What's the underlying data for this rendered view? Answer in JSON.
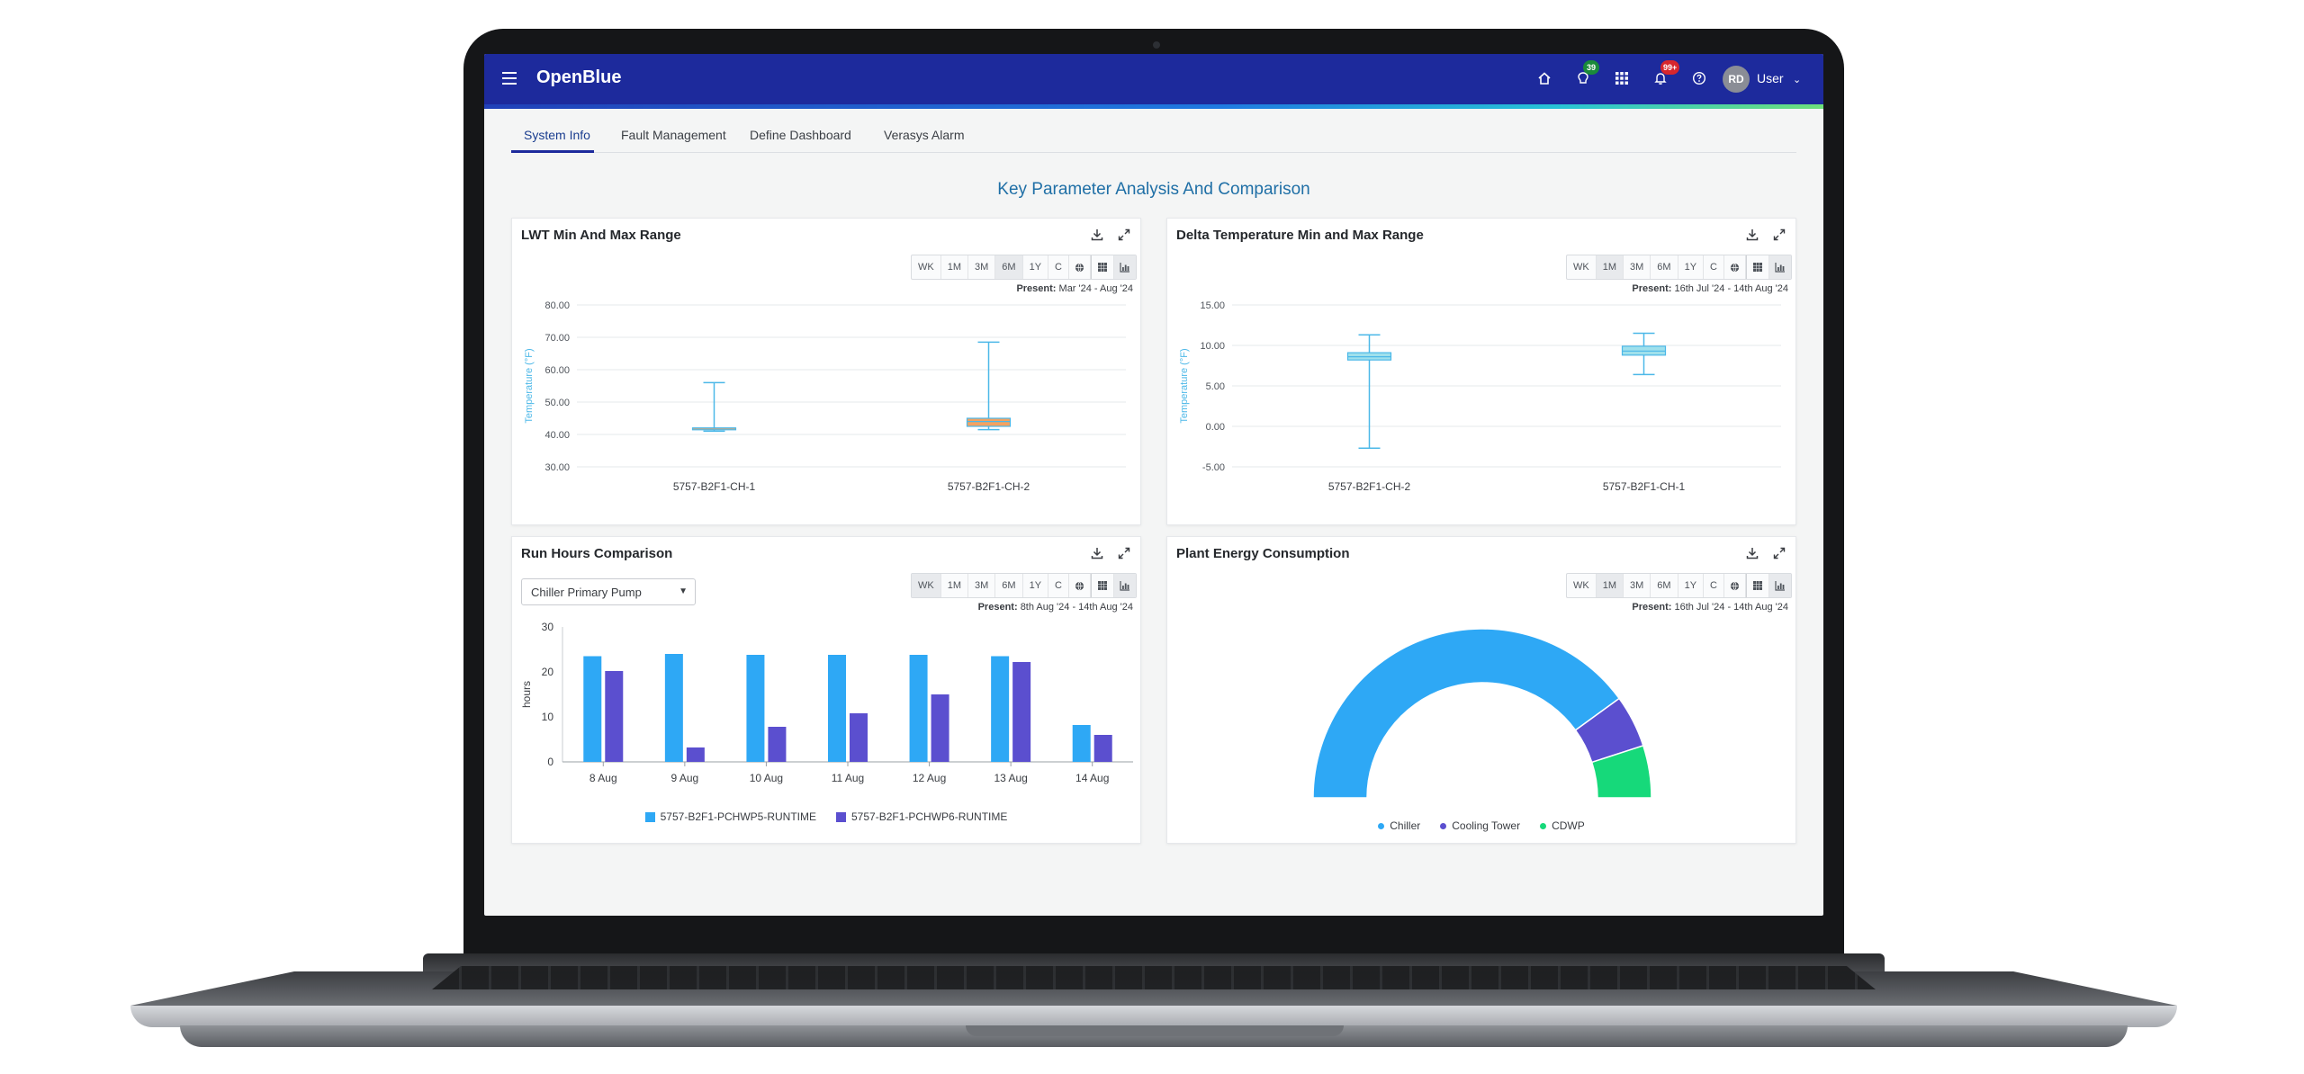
{
  "app": {
    "title": "OpenBlue"
  },
  "header": {
    "messages_badge": "39",
    "notifications_badge": "99+",
    "avatar_initials": "RD",
    "user_label": "User"
  },
  "tabs": [
    {
      "label": "System Info",
      "active": true
    },
    {
      "label": "Fault Management",
      "active": false
    },
    {
      "label": "Define Dashboard",
      "active": false
    },
    {
      "label": "Verasys Alarm",
      "active": false
    }
  ],
  "page_title": "Key Parameter Analysis And Comparison",
  "range_buttons": [
    "WK",
    "1M",
    "3M",
    "6M",
    "1Y",
    "C"
  ],
  "present_label": "Present:",
  "cards": {
    "lwt": {
      "title": "LWT Min And Max Range",
      "selected_range": "6M",
      "present": "Mar '24 - Aug '24"
    },
    "delta": {
      "title": "Delta Temperature Min and Max Range",
      "selected_range": "1M",
      "present": "16th Jul '24 - 14th Aug '24"
    },
    "run_hours": {
      "title": "Run Hours Comparison",
      "selected_range": "WK",
      "present": "8th Aug '24 - 14th Aug '24",
      "dropdown_value": "Chiller Primary Pump"
    },
    "energy": {
      "title": "Plant Energy Consumption",
      "selected_range": "1M",
      "present": "16th Jul '24 - 14th Aug '24"
    }
  },
  "colors": {
    "header_bg": "#1d2a9c",
    "accent": "#1f6fa6",
    "box_line": "#4cb8e8",
    "box_fill_orange": "#f4a261",
    "box_fill_cyan": "#9fe0ec",
    "series1": "#2ea8f5",
    "series2": "#5b4fcf",
    "chiller": "#2ea8f5",
    "cooling_tower": "#5b4fcf",
    "cdwp": "#16d97a",
    "badge_green": "#1a8a3a",
    "badge_red": "#d7262d"
  },
  "chart_data": [
    {
      "type": "boxplot",
      "title": "LWT Min And Max Range",
      "ylabel": "Temperature (°F)",
      "ylim": [
        30,
        80
      ],
      "yticks": [
        "80.00",
        "70.00",
        "60.00",
        "50.00",
        "40.00",
        "30.00"
      ],
      "categories": [
        "5757-B2F1-CH-1",
        "5757-B2F1-CH-2"
      ],
      "boxes": [
        {
          "min": 41,
          "q1": 42,
          "median": 42,
          "q3": 42,
          "max": 56
        },
        {
          "min": 41.5,
          "q1": 42.5,
          "median": 44,
          "q3": 45,
          "max": 68.5
        }
      ]
    },
    {
      "type": "boxplot",
      "title": "Delta Temperature Min and Max Range",
      "ylabel": "Temperature (°F)",
      "ylim": [
        -5,
        15
      ],
      "yticks": [
        "15.00",
        "10.00",
        "5.00",
        "0.00",
        "-5.00"
      ],
      "categories": [
        "5757-B2F1-CH-2",
        "5757-B2F1-CH-1"
      ],
      "boxes": [
        {
          "min": -2.7,
          "q1": 8.2,
          "median": 8.6,
          "q3": 9.1,
          "max": 11.3
        },
        {
          "min": 6.4,
          "q1": 8.8,
          "median": 9.3,
          "q3": 9.9,
          "max": 11.5
        }
      ]
    },
    {
      "type": "bar",
      "title": "Run Hours Comparison",
      "ylabel": "hours",
      "ylim": [
        0,
        30
      ],
      "yticks": [
        "30",
        "20",
        "10",
        "0"
      ],
      "categories": [
        "8 Aug",
        "9 Aug",
        "10 Aug",
        "11 Aug",
        "12 Aug",
        "13 Aug",
        "14 Aug"
      ],
      "series": [
        {
          "name": "5757-B2F1-PCHWP5-RUNTIME",
          "values": [
            23.5,
            24,
            23.8,
            23.8,
            23.8,
            23.5,
            8.2
          ]
        },
        {
          "name": "5757-B2F1-PCHWP6-RUNTIME",
          "values": [
            20.2,
            3.2,
            7.8,
            10.8,
            15,
            22.2,
            6
          ]
        }
      ]
    },
    {
      "type": "pie",
      "title": "Plant Energy Consumption",
      "variant": "semi-donut",
      "labels": [
        "Chiller",
        "Cooling Tower",
        "CDWP"
      ],
      "values": [
        80,
        10,
        10
      ]
    }
  ]
}
